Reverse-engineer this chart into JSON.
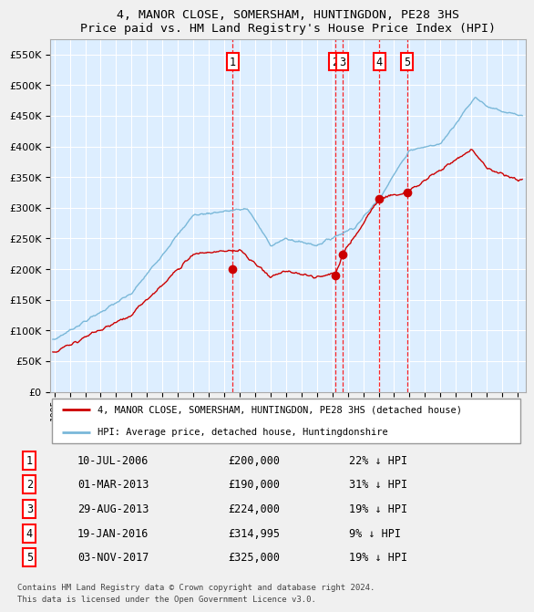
{
  "title": "4, MANOR CLOSE, SOMERSHAM, HUNTINGDON, PE28 3HS",
  "subtitle": "Price paid vs. HM Land Registry's House Price Index (HPI)",
  "ytick_values": [
    0,
    50000,
    100000,
    150000,
    200000,
    250000,
    300000,
    350000,
    400000,
    450000,
    500000,
    550000
  ],
  "ylim": [
    0,
    575000
  ],
  "xlim_start": 1994.7,
  "xlim_end": 2025.5,
  "transactions": [
    {
      "num": 1,
      "date": "10-JUL-2006",
      "price": 200000,
      "year": 2006.53,
      "hpi_pct": "22% ↓ HPI"
    },
    {
      "num": 2,
      "date": "01-MAR-2013",
      "price": 190000,
      "year": 2013.17,
      "hpi_pct": "31% ↓ HPI"
    },
    {
      "num": 3,
      "date": "29-AUG-2013",
      "price": 224000,
      "year": 2013.66,
      "hpi_pct": "19% ↓ HPI"
    },
    {
      "num": 4,
      "date": "19-JAN-2016",
      "price": 314995,
      "year": 2016.05,
      "hpi_pct": "9% ↓ HPI"
    },
    {
      "num": 5,
      "date": "03-NOV-2017",
      "price": 325000,
      "year": 2017.84,
      "hpi_pct": "19% ↓ HPI"
    }
  ],
  "legend_house": "4, MANOR CLOSE, SOMERSHAM, HUNTINGDON, PE28 3HS (detached house)",
  "legend_hpi": "HPI: Average price, detached house, Huntingdonshire",
  "footer": "Contains HM Land Registry data © Crown copyright and database right 2024.\nThis data is licensed under the Open Government Licence v3.0.",
  "hpi_color": "#7ab8d9",
  "house_color": "#cc0000",
  "bg_color": "#ddeeff",
  "grid_color": "#ffffff",
  "marker_color": "#cc0000",
  "fig_bg": "#f0f0f0"
}
